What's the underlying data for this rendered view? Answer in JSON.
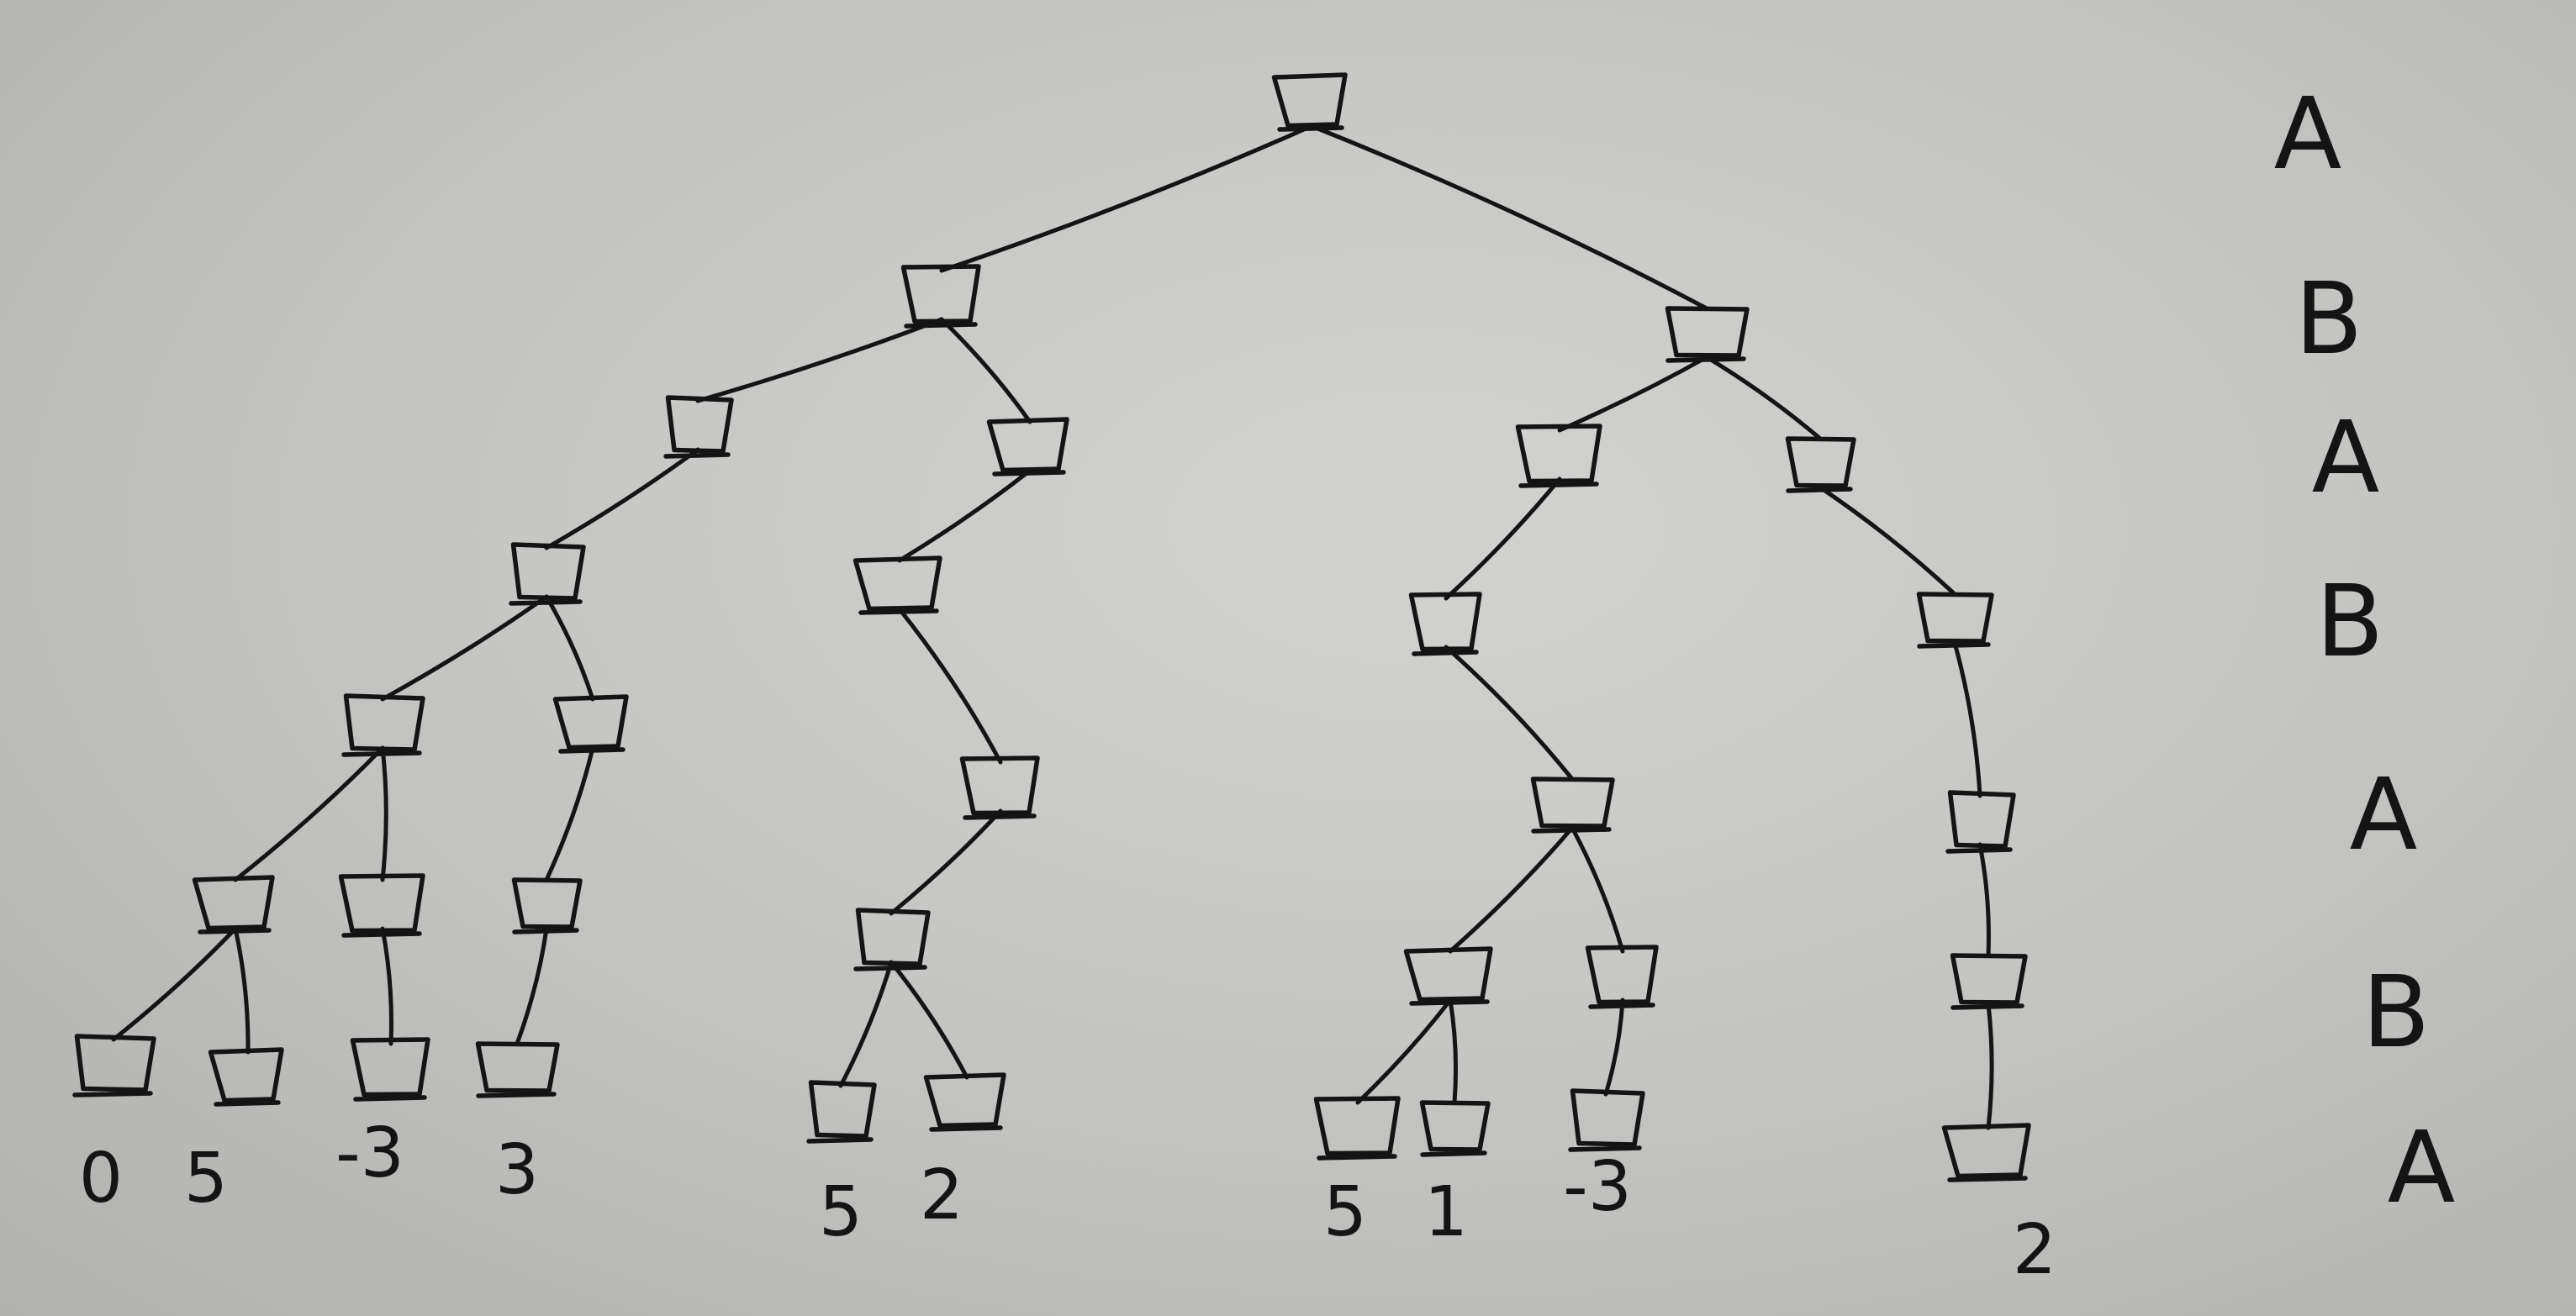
{
  "leaf_values": [
    "0",
    "5",
    "-3",
    "3",
    "5",
    "2",
    "5",
    "1",
    "-3",
    "2"
  ],
  "player_labels": [
    "A",
    "B",
    "A",
    "B",
    "A",
    "B",
    "A"
  ],
  "ink_color": "#141414",
  "paper_color": "#c8c8c6"
}
